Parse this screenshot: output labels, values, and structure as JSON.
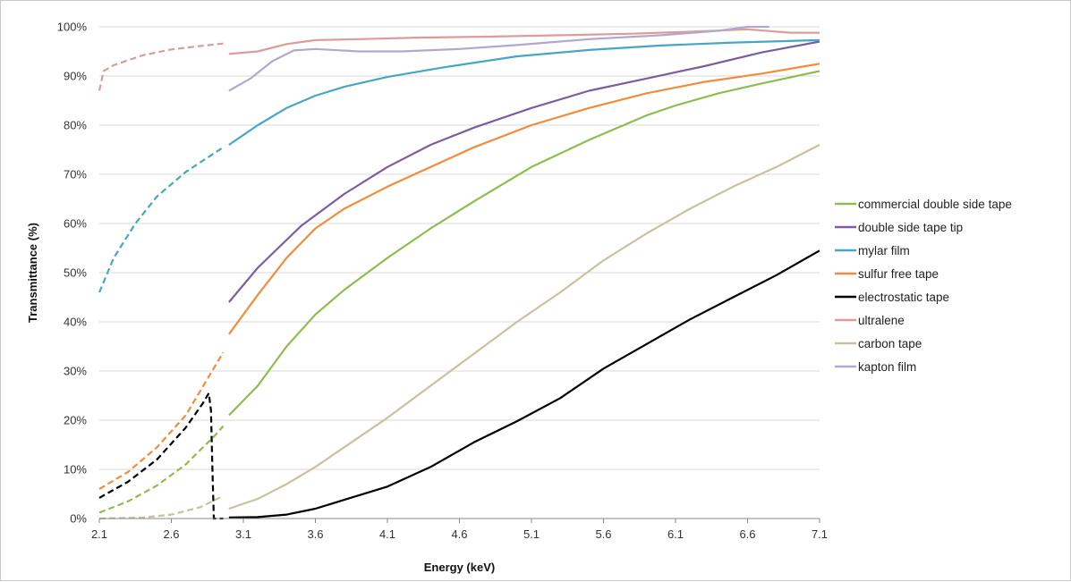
{
  "chart_data": {
    "type": "line",
    "xlabel": "Energy (keV)",
    "ylabel": "Transmittance (%)",
    "xlim": [
      2.1,
      7.1
    ],
    "ylim": [
      0,
      100
    ],
    "x_ticks": [
      "2.1",
      "2.6",
      "3.1",
      "3.6",
      "4.1",
      "4.6",
      "5.1",
      "5.6",
      "6.1",
      "6.6",
      "7.1"
    ],
    "y_ticks": [
      "0%",
      "10%",
      "20%",
      "30%",
      "40%",
      "50%",
      "60%",
      "70%",
      "80%",
      "90%",
      "100%"
    ],
    "grid": "horizontal",
    "legend": "right",
    "series": [
      {
        "name": "commercial double side tape",
        "color": "#8fbc4e",
        "dashed": [
          [
            2.1,
            1.2
          ],
          [
            2.3,
            3.5
          ],
          [
            2.5,
            6.7
          ],
          [
            2.7,
            11.0
          ],
          [
            2.9,
            16.8
          ],
          [
            2.96,
            18.8
          ]
        ],
        "solid": [
          [
            3.0,
            21
          ],
          [
            3.2,
            27
          ],
          [
            3.4,
            35
          ],
          [
            3.6,
            41.5
          ],
          [
            3.8,
            46.5
          ],
          [
            4.1,
            53
          ],
          [
            4.4,
            59
          ],
          [
            4.7,
            64.5
          ],
          [
            5.1,
            71.5
          ],
          [
            5.5,
            77
          ],
          [
            5.9,
            82
          ],
          [
            6.1,
            84
          ],
          [
            6.4,
            86.5
          ],
          [
            6.7,
            88.5
          ],
          [
            7.1,
            91
          ]
        ]
      },
      {
        "name": "double side tape tip",
        "color": "#7b5ea0",
        "dashed": [],
        "solid": [
          [
            3.0,
            44
          ],
          [
            3.2,
            51
          ],
          [
            3.5,
            59.5
          ],
          [
            3.8,
            66
          ],
          [
            4.1,
            71.5
          ],
          [
            4.4,
            76
          ],
          [
            4.7,
            79.5
          ],
          [
            5.1,
            83.5
          ],
          [
            5.5,
            87
          ],
          [
            5.9,
            89.5
          ],
          [
            6.3,
            92
          ],
          [
            6.7,
            94.8
          ],
          [
            7.1,
            97
          ]
        ]
      },
      {
        "name": "mylar film",
        "color": "#45a7c3",
        "dashed": [
          [
            2.1,
            46
          ],
          [
            2.2,
            53
          ],
          [
            2.35,
            60
          ],
          [
            2.5,
            65.5
          ],
          [
            2.7,
            70.5
          ],
          [
            2.96,
            75.5
          ]
        ],
        "solid": [
          [
            3.0,
            76
          ],
          [
            3.2,
            80
          ],
          [
            3.4,
            83.5
          ],
          [
            3.6,
            86
          ],
          [
            3.8,
            87.8
          ],
          [
            4.1,
            89.8
          ],
          [
            4.5,
            91.8
          ],
          [
            5.0,
            94
          ],
          [
            5.5,
            95.3
          ],
          [
            6.0,
            96.2
          ],
          [
            6.5,
            96.8
          ],
          [
            7.1,
            97.3
          ]
        ]
      },
      {
        "name": "sulfur free tape",
        "color": "#f28c3a",
        "dashed": [
          [
            2.1,
            6
          ],
          [
            2.3,
            9.5
          ],
          [
            2.5,
            14.5
          ],
          [
            2.7,
            21
          ],
          [
            2.96,
            33.8
          ]
        ],
        "solid": [
          [
            3.0,
            37.5
          ],
          [
            3.2,
            45.5
          ],
          [
            3.4,
            53
          ],
          [
            3.6,
            59
          ],
          [
            3.8,
            63
          ],
          [
            4.1,
            67.5
          ],
          [
            4.4,
            71.5
          ],
          [
            4.7,
            75.5
          ],
          [
            5.1,
            80
          ],
          [
            5.5,
            83.5
          ],
          [
            5.9,
            86.5
          ],
          [
            6.3,
            88.8
          ],
          [
            6.7,
            90.5
          ],
          [
            7.1,
            92.5
          ]
        ]
      },
      {
        "name": "electrostatic tape",
        "color": "#000000",
        "dashed": [
          [
            2.1,
            4.2
          ],
          [
            2.3,
            7.5
          ],
          [
            2.5,
            12
          ],
          [
            2.7,
            18.5
          ],
          [
            2.82,
            23.5
          ],
          [
            2.86,
            25.5
          ],
          [
            2.875,
            22
          ],
          [
            2.885,
            10
          ],
          [
            2.895,
            0
          ],
          [
            2.96,
            0
          ]
        ],
        "solid": [
          [
            3.0,
            0.2
          ],
          [
            3.2,
            0.3
          ],
          [
            3.4,
            0.8
          ],
          [
            3.6,
            2
          ],
          [
            3.8,
            3.8
          ],
          [
            4.1,
            6.5
          ],
          [
            4.4,
            10.5
          ],
          [
            4.7,
            15.5
          ],
          [
            5.0,
            19.8
          ],
          [
            5.3,
            24.5
          ],
          [
            5.6,
            30.5
          ],
          [
            5.9,
            35.5
          ],
          [
            6.2,
            40.5
          ],
          [
            6.5,
            45
          ],
          [
            6.8,
            49.5
          ],
          [
            7.1,
            54.5
          ]
        ]
      },
      {
        "name": "ultralene",
        "color": "#dd9c9b",
        "dashed": [
          [
            2.1,
            87
          ],
          [
            2.13,
            91
          ],
          [
            2.2,
            92.2
          ],
          [
            2.4,
            94.2
          ],
          [
            2.6,
            95.4
          ],
          [
            2.8,
            96.1
          ],
          [
            2.96,
            96.6
          ]
        ],
        "solid": [
          [
            3.0,
            94.5
          ],
          [
            3.2,
            95
          ],
          [
            3.4,
            96.5
          ],
          [
            3.6,
            97.3
          ],
          [
            3.9,
            97.5
          ],
          [
            4.3,
            97.8
          ],
          [
            4.8,
            98
          ],
          [
            5.3,
            98.3
          ],
          [
            5.8,
            98.6
          ],
          [
            6.2,
            99
          ],
          [
            6.6,
            99.5
          ],
          [
            6.9,
            98.8
          ],
          [
            7.1,
            98.8
          ]
        ]
      },
      {
        "name": "carbon tape",
        "color": "#c9c1a0",
        "dashed": [
          [
            2.1,
            0
          ],
          [
            2.4,
            0.2
          ],
          [
            2.6,
            0.8
          ],
          [
            2.8,
            2.3
          ],
          [
            2.96,
            4.6
          ]
        ],
        "solid": [
          [
            3.0,
            2
          ],
          [
            3.2,
            4
          ],
          [
            3.4,
            7
          ],
          [
            3.6,
            10.5
          ],
          [
            3.8,
            14.5
          ],
          [
            4.1,
            20.5
          ],
          [
            4.4,
            27
          ],
          [
            4.7,
            33.5
          ],
          [
            5.0,
            40
          ],
          [
            5.3,
            46
          ],
          [
            5.6,
            52.5
          ],
          [
            5.9,
            58
          ],
          [
            6.2,
            63
          ],
          [
            6.5,
            67.5
          ],
          [
            6.8,
            71.5
          ],
          [
            7.1,
            76
          ]
        ]
      },
      {
        "name": "kapton film",
        "color": "#b3a7cf",
        "dashed": [],
        "solid": [
          [
            3.0,
            87
          ],
          [
            3.15,
            89.5
          ],
          [
            3.3,
            93
          ],
          [
            3.45,
            95.2
          ],
          [
            3.6,
            95.5
          ],
          [
            3.9,
            95
          ],
          [
            4.2,
            95
          ],
          [
            4.6,
            95.5
          ],
          [
            5.0,
            96.3
          ],
          [
            5.5,
            97.5
          ],
          [
            6.0,
            98.3
          ],
          [
            6.4,
            99.2
          ],
          [
            6.6,
            100
          ],
          [
            6.75,
            100
          ]
        ]
      }
    ]
  }
}
